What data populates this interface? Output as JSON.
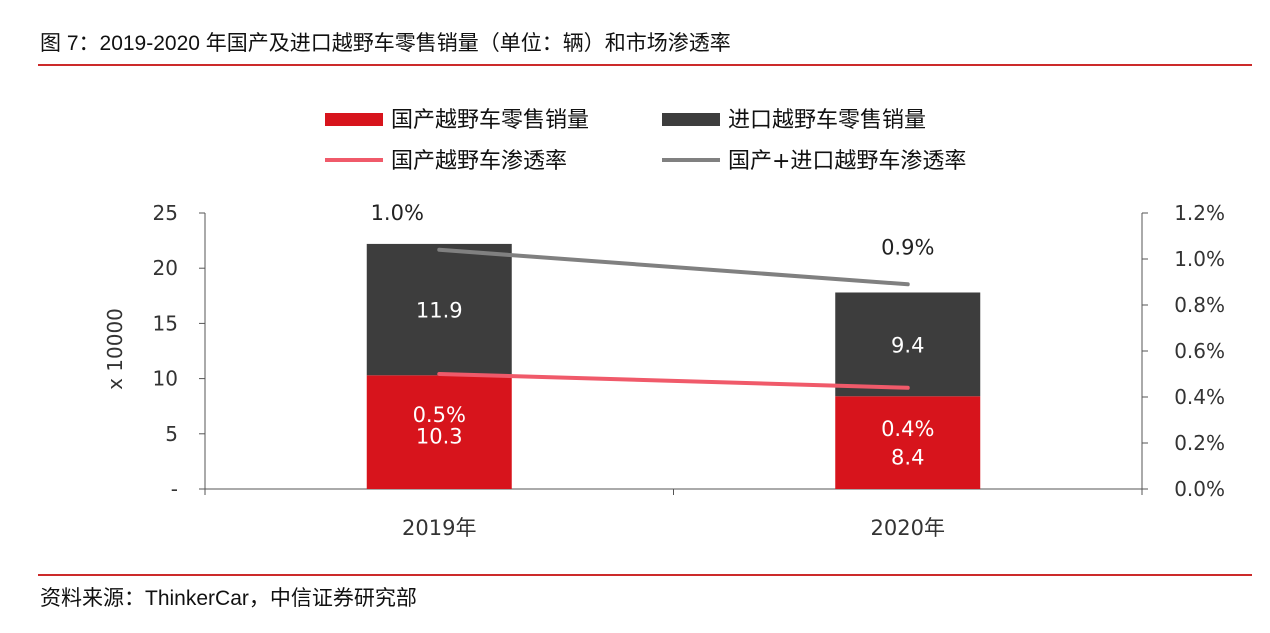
{
  "figure": {
    "title": "图 7：2019-2020 年国产及进口越野车零售销量（单位：辆）和市场渗透率",
    "source": "资料来源：ThinkerCar，中信证券研究部"
  },
  "chart_data": {
    "type": "bar",
    "stacked": true,
    "categories": [
      "2019年",
      "2020年"
    ],
    "ylabel": "x 10000",
    "ylim": [
      0,
      25
    ],
    "y_ticks": [
      "-",
      "5",
      "10",
      "15",
      "20",
      "25"
    ],
    "y2lim": [
      0,
      1.2
    ],
    "y2_ticks": [
      "0.0%",
      "0.2%",
      "0.4%",
      "0.6%",
      "0.8%",
      "1.0%",
      "1.2%"
    ],
    "legend_position": "top",
    "series": [
      {
        "name": "国产越野车零售销量",
        "kind": "bar",
        "axis": "left",
        "color": "#d7141c",
        "values": [
          10.3,
          8.4
        ],
        "labels": [
          "10.3",
          "8.4"
        ]
      },
      {
        "name": "进口越野车零售销量",
        "kind": "bar",
        "axis": "left",
        "color": "#3d3d3d",
        "values": [
          11.9,
          9.4
        ],
        "labels": [
          "11.9",
          "9.4"
        ]
      },
      {
        "name": "国产越野车渗透率",
        "kind": "line",
        "axis": "right",
        "color": "#f05a6a",
        "values": [
          0.5,
          0.44
        ],
        "labels": [
          "0.5%",
          "0.4%"
        ]
      },
      {
        "name": "国产+进口越野车渗透率",
        "kind": "line",
        "axis": "right",
        "color": "#808080",
        "values": [
          1.04,
          0.89
        ],
        "labels": [
          "1.0%",
          "0.9%"
        ]
      }
    ]
  }
}
